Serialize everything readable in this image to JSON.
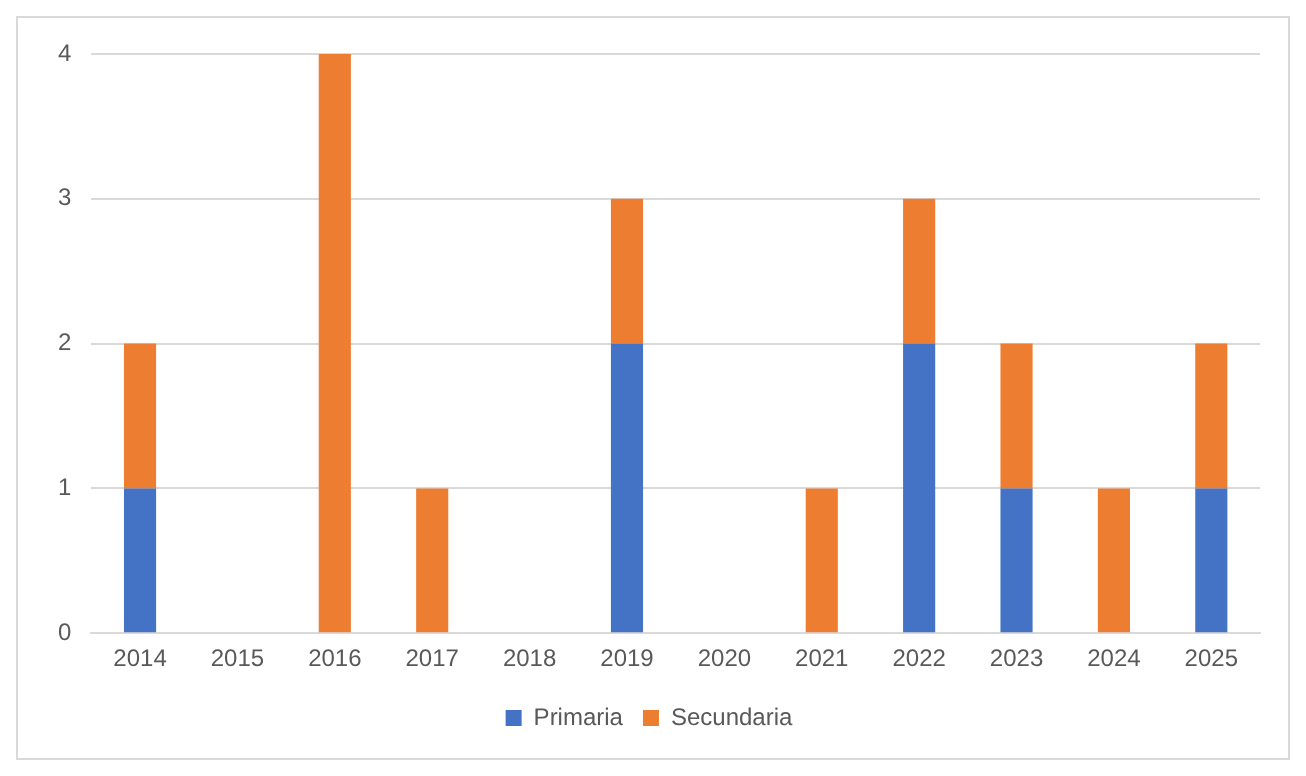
{
  "chart_data": {
    "type": "bar",
    "stacked": true,
    "categories": [
      "2014",
      "2015",
      "2016",
      "2017",
      "2018",
      "2019",
      "2020",
      "2021",
      "2022",
      "2023",
      "2024",
      "2025"
    ],
    "series": [
      {
        "name": "Primaria",
        "color": "#4472c4",
        "values": [
          1,
          0,
          0,
          0,
          0,
          2,
          0,
          0,
          2,
          1,
          0,
          1
        ]
      },
      {
        "name": "Secundaria",
        "color": "#ed7d31",
        "values": [
          1,
          0,
          4,
          1,
          0,
          1,
          0,
          1,
          1,
          1,
          1,
          1
        ]
      }
    ],
    "ylim": [
      0,
      4
    ],
    "yticks": [
      0,
      1,
      2,
      3,
      4
    ],
    "grid": "y",
    "legend": "bottom"
  }
}
